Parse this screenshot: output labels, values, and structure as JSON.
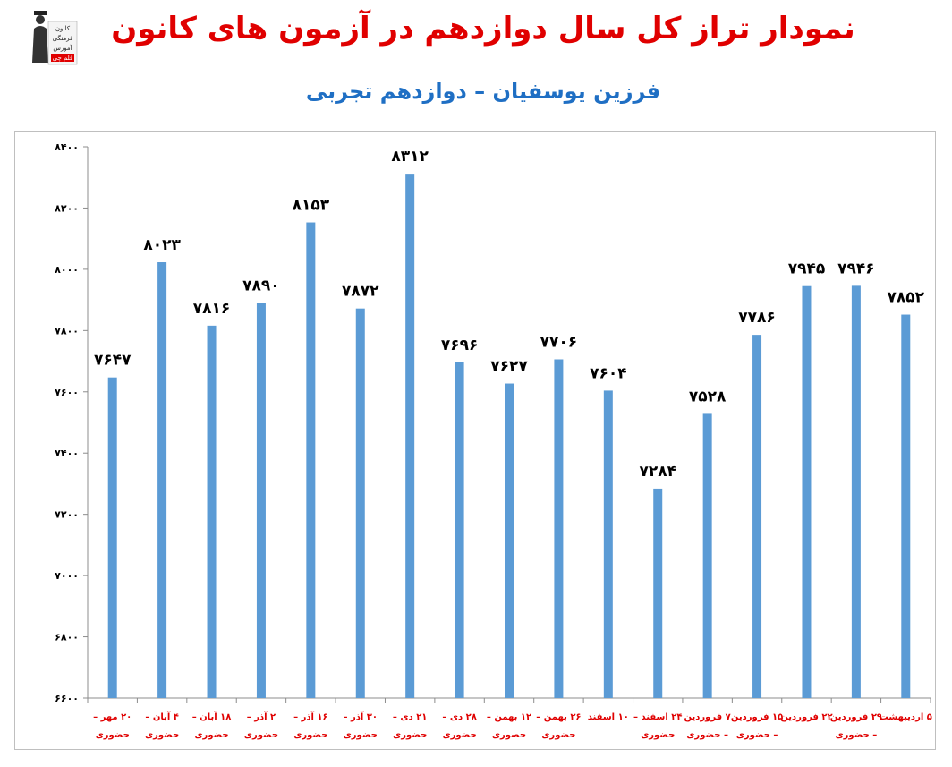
{
  "header": {
    "title_lead": "نمودار تراز کل",
    "title_rest": " سال دوازدهم در آزمون های کانون",
    "subtitle": "فرزین یوسفیان – دوازدهم تجربی",
    "logo_lines": [
      "کانون",
      "فرهنگی",
      "آموزش",
      "قلم چی"
    ],
    "logo_icon": "graduate-figure-icon"
  },
  "chart_data": {
    "type": "bar",
    "title": "نمودار تراز کل سال دوازدهم در آزمون های کانون",
    "subtitle": "فرزین یوسفیان – دوازدهم تجربی",
    "ylim": [
      6600,
      8400
    ],
    "yticks": [
      6600,
      6800,
      7000,
      7200,
      7400,
      7600,
      7800,
      8000,
      8200,
      8400
    ],
    "ytick_labels": [
      "۶۶۰۰",
      "۶۸۰۰",
      "۷۰۰۰",
      "۷۲۰۰",
      "۷۴۰۰",
      "۷۶۰۰",
      "۷۸۰۰",
      "۸۰۰۰",
      "۸۲۰۰",
      "۸۴۰۰"
    ],
    "categories": [
      [
        "۲۰ مهر –",
        "حضوری"
      ],
      [
        "۴ آبان –",
        "حضوری"
      ],
      [
        "۱۸ آبان –",
        "حضوری"
      ],
      [
        "۲ آذر –",
        "حضوری"
      ],
      [
        "۱۶ آذر –",
        "حضوری"
      ],
      [
        "۳۰ آذر –",
        "حضوری"
      ],
      [
        "۲۱ دی –",
        "حضوری"
      ],
      [
        "۲۸ دی –",
        "حضوری"
      ],
      [
        "۱۲ بهمن –",
        "حضوری"
      ],
      [
        "۲۶ بهمن –",
        "حضوری"
      ],
      [
        "۱۰ اسفند"
      ],
      [
        "۲۴ اسفند –",
        "حضوری"
      ],
      [
        "۷ فروردین",
        "– حضوری"
      ],
      [
        "۱۵ فروردین",
        "– حضوری"
      ],
      [
        "۲۲ فروردین"
      ],
      [
        "۲۹ فروردین",
        "– حضوری"
      ],
      [
        "۵ اردیبهشت"
      ]
    ],
    "values": [
      7647,
      8023,
      7816,
      7890,
      8153,
      7872,
      8312,
      7696,
      7627,
      7706,
      7604,
      7284,
      7528,
      7786,
      7945,
      7946,
      7852
    ],
    "value_labels": [
      "۷۶۴۷",
      "۸۰۲۳",
      "۷۸۱۶",
      "۷۸۹۰",
      "۸۱۵۳",
      "۷۸۷۲",
      "۸۳۱۲",
      "۷۶۹۶",
      "۷۶۲۷",
      "۷۷۰۶",
      "۷۶۰۴",
      "۷۲۸۴",
      "۷۵۲۸",
      "۷۷۸۶",
      "۷۹۴۵",
      "۷۹۴۶",
      "۷۸۵۲"
    ],
    "xlabel": "",
    "ylabel": "",
    "grid": false,
    "legend": "none",
    "bar_color": "#5b9bd5",
    "label_color": "#e00000"
  }
}
